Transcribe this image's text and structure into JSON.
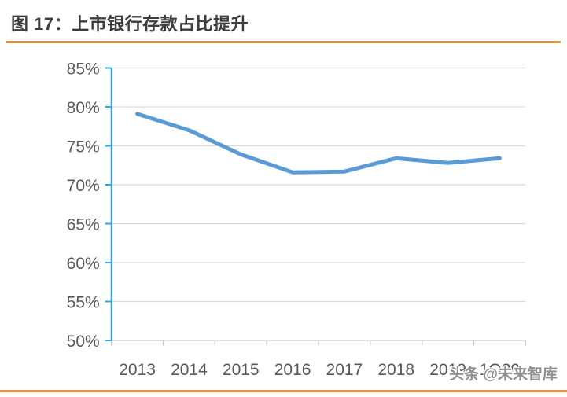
{
  "header": {
    "title": "图 17：上市银行存款占比提升"
  },
  "watermark": {
    "text": "头条 @未来智库"
  },
  "colors": {
    "title_text": "#3c3c3c",
    "title_rule": "#d6993f",
    "footer_rule": "#ef8e3e",
    "watermark_text": "#8e8e8e"
  },
  "chart_data": {
    "type": "line",
    "title": "上市银行存款占比提升",
    "xlabel": "",
    "ylabel": "",
    "categories": [
      "2013",
      "2014",
      "2015",
      "2016",
      "2017",
      "2018",
      "2019",
      "1Q20"
    ],
    "series": [
      {
        "name": "上市银行存款占比",
        "color": "#5b9bd5",
        "values": [
          79.1,
          77.0,
          73.9,
          71.6,
          71.7,
          73.4,
          72.8,
          73.4
        ]
      }
    ],
    "ylim": [
      50,
      85
    ],
    "y_ticks": [
      {
        "value": 85,
        "label": "85%"
      },
      {
        "value": 80,
        "label": "80%"
      },
      {
        "value": 75,
        "label": "75%"
      },
      {
        "value": 70,
        "label": "70%"
      },
      {
        "value": 65,
        "label": "65%"
      },
      {
        "value": 60,
        "label": "60%"
      },
      {
        "value": 55,
        "label": "55%"
      },
      {
        "value": 50,
        "label": "50%"
      }
    ],
    "grid": true,
    "legend_position": "none",
    "axis_color": "#29a9df",
    "x_axis_color": "#c9c9c9",
    "gridline_color": "#d9d9d9",
    "tick_label_color": "#595959"
  }
}
